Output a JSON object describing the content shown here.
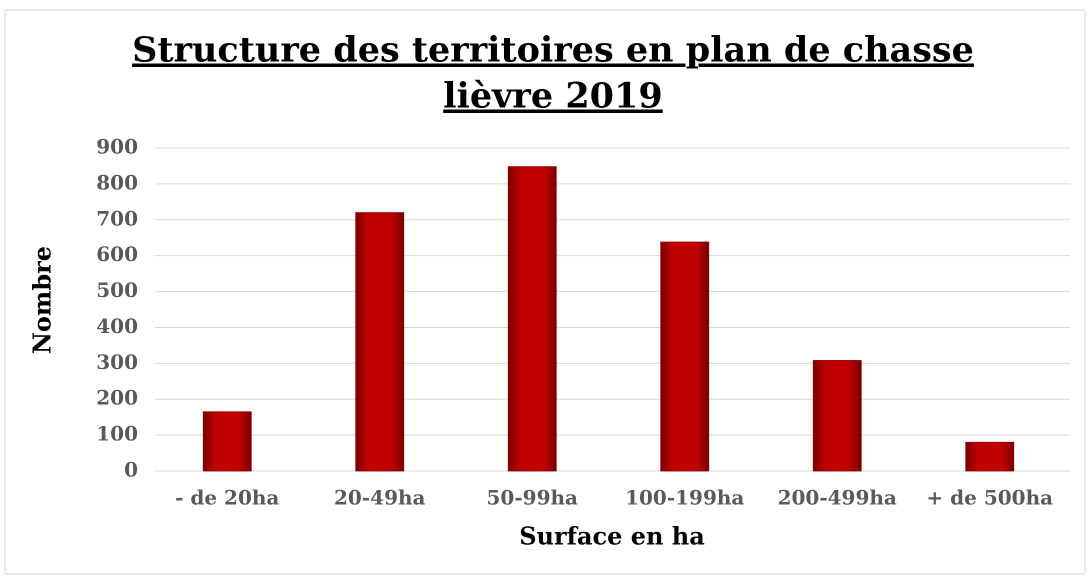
{
  "chart_data": {
    "type": "bar",
    "title": [
      "Structure des territoires en plan de chasse",
      "lièvre 2019"
    ],
    "x_label": "Surface en ha",
    "y_label": "Nombre",
    "categories": [
      "- de 20ha",
      "20-49ha",
      "50-99ha",
      "100-199ha",
      "200-499ha",
      "+ de 500ha"
    ],
    "values": [
      165,
      720,
      848,
      638,
      308,
      80
    ],
    "color": "#c00000",
    "ylim": [
      0,
      900
    ],
    "yticks": [
      0,
      100,
      200,
      300,
      400,
      500,
      600,
      700,
      800,
      900
    ],
    "grid": true
  }
}
